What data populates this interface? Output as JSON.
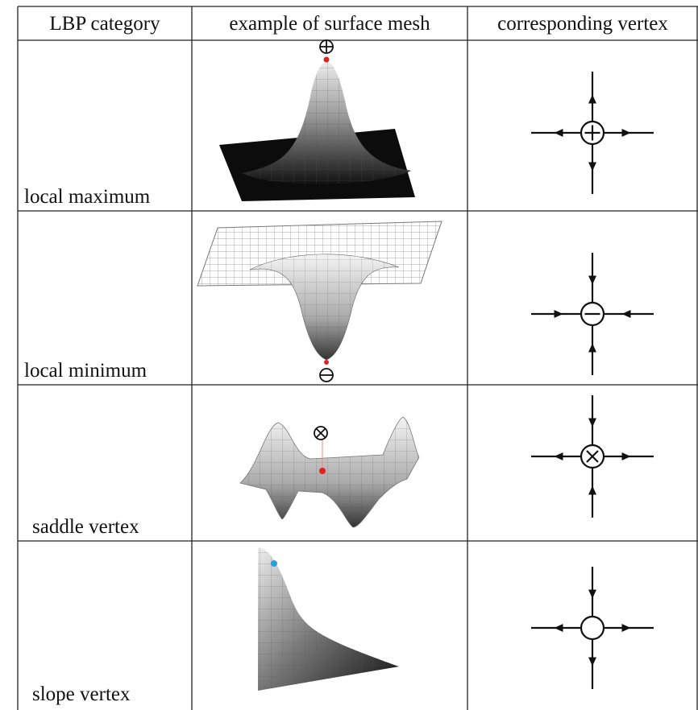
{
  "table": {
    "header": [
      "LBP category",
      "example of surface mesh",
      "corresponding vertex"
    ],
    "rows": [
      [
        "local maximum"
      ],
      [
        "local minimum"
      ],
      [
        "saddle vertex"
      ],
      [
        "slope vertex"
      ]
    ]
  }
}
